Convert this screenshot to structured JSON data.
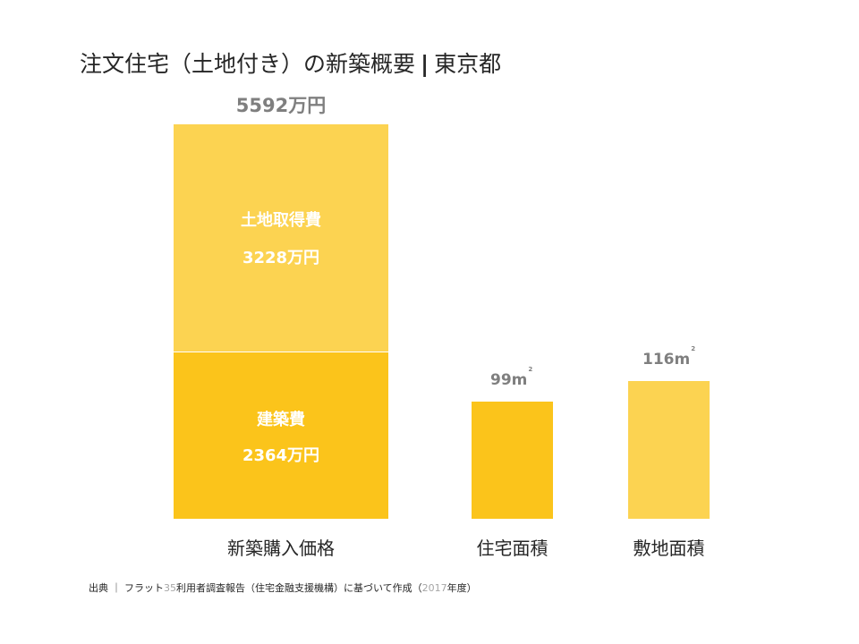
{
  "title": {
    "main": "注文住宅（土地付き）の新築概要",
    "separator": "|",
    "region": "東京都"
  },
  "chart_data": [
    {
      "type": "bar",
      "stacked": true,
      "category": "新築購入価格",
      "total_label": "5592万円",
      "total": 5592,
      "unit": "万円",
      "segments": [
        {
          "name": "土地取得費",
          "value": 3228,
          "value_label": "3228万円",
          "color": "#fcd351"
        },
        {
          "name": "建築費",
          "value": 2364,
          "value_label": "2364万円",
          "color": "#fbc41b"
        }
      ]
    },
    {
      "type": "bar",
      "categories": [
        "住宅面積",
        "敷地面積"
      ],
      "values": [
        99,
        116
      ],
      "value_labels": [
        "99m",
        "116m"
      ],
      "unit_superscript": "2",
      "colors": [
        "#fbc41b",
        "#fcd351"
      ]
    }
  ],
  "source": {
    "prefix": "出典 ｜ フラット",
    "num": "35",
    "middle": "利用者調査報告（住宅金融支援機構）に基づいて作成（",
    "year": "2017",
    "suffix": "年度）"
  }
}
